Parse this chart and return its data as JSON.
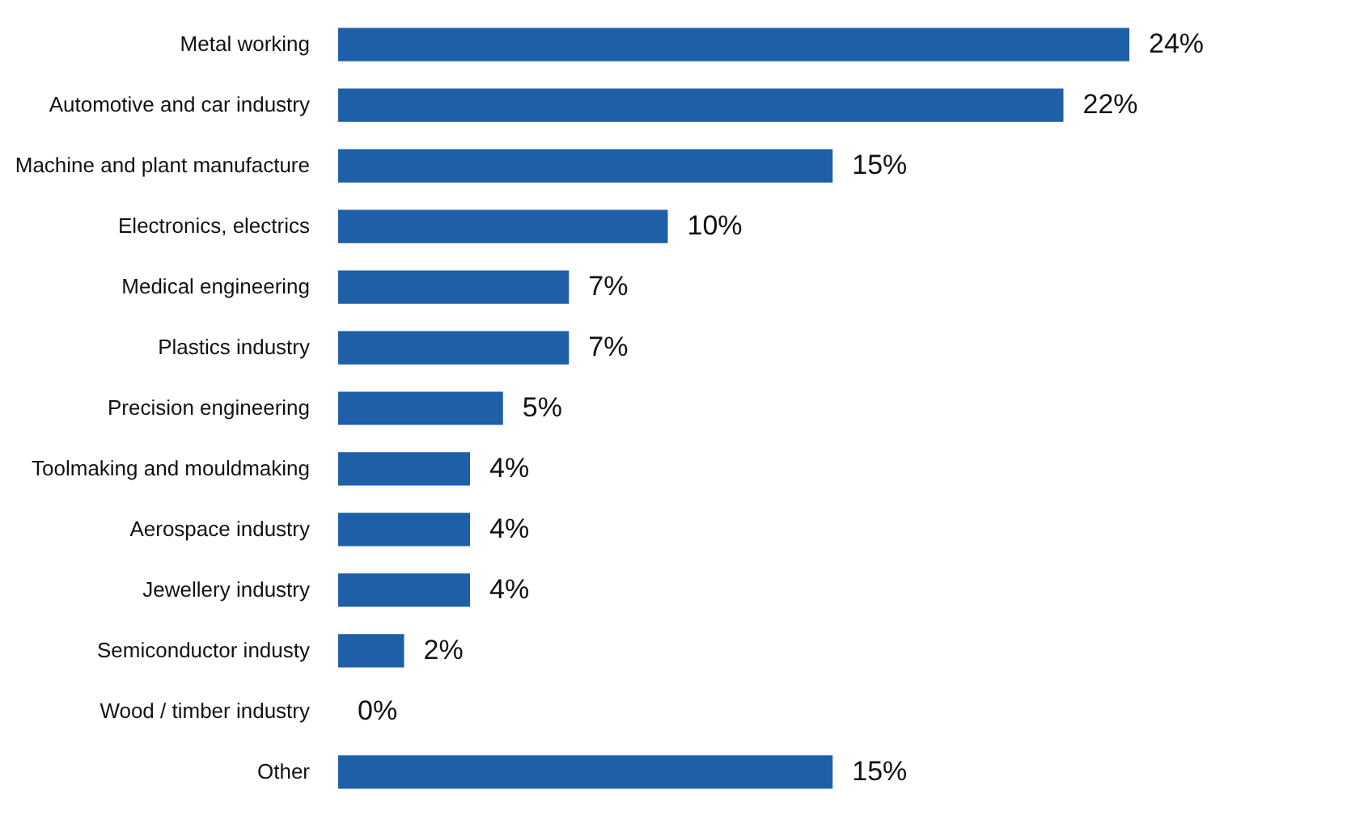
{
  "chart_data": {
    "type": "bar",
    "orientation": "horizontal",
    "categories": [
      "Metal working",
      "Automotive and car industry",
      "Machine and plant manufacture",
      "Electronics, electrics",
      "Medical engineering",
      "Plastics industry",
      "Precision engineering",
      "Toolmaking and mouldmaking",
      "Aerospace industry",
      "Jewellery industry",
      "Semiconductor industy",
      "Wood / timber industry",
      "Other"
    ],
    "values": [
      24,
      22,
      15,
      10,
      7,
      7,
      5,
      4,
      4,
      4,
      2,
      0,
      15
    ],
    "value_labels": [
      "24%",
      "22%",
      "15%",
      "10%",
      "7%",
      "7%",
      "5%",
      "4%",
      "4%",
      "4%",
      "2%",
      "0%",
      "15%"
    ],
    "color": "#1f5fa8",
    "grid": false
  }
}
